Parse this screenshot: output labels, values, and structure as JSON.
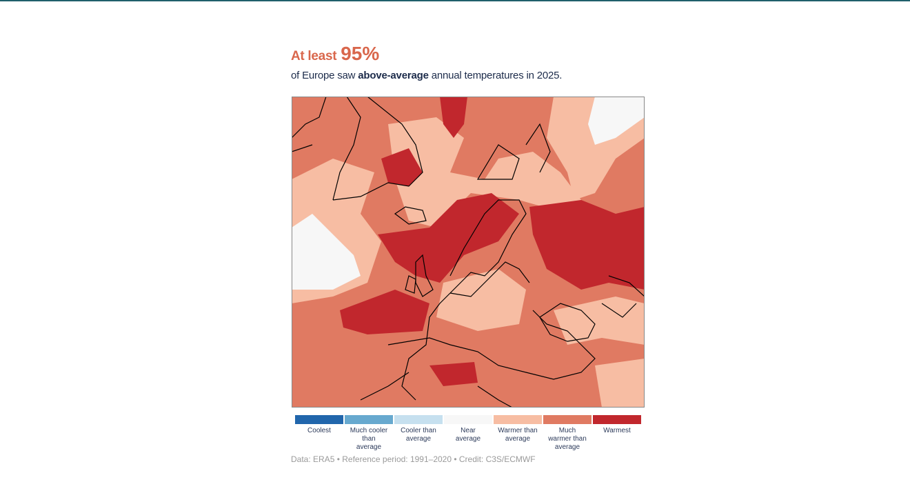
{
  "header": {
    "prefix": "At least",
    "highlight": "95%",
    "subtitle_start": "of Europe saw",
    "subtitle_bold": "above-average",
    "subtitle_end": "annual temperatures in 2025."
  },
  "legend": [
    {
      "label": "Coolest",
      "color": "#2166ac"
    },
    {
      "label": "Much cooler than average",
      "color": "#67a9cf"
    },
    {
      "label": "Cooler than average",
      "color": "#c6e0ef"
    },
    {
      "label": "Near average",
      "color": "#f7f7f7"
    },
    {
      "label": "Warmer than average",
      "color": "#f7bda3"
    },
    {
      "label": "Much warmer than average",
      "color": "#e07a62"
    },
    {
      "label": "Warmest",
      "color": "#c1272d"
    }
  ],
  "source": "Data: ERA5 • Reference period: 1991–2020 • Credit: C3S/ECMWF"
}
